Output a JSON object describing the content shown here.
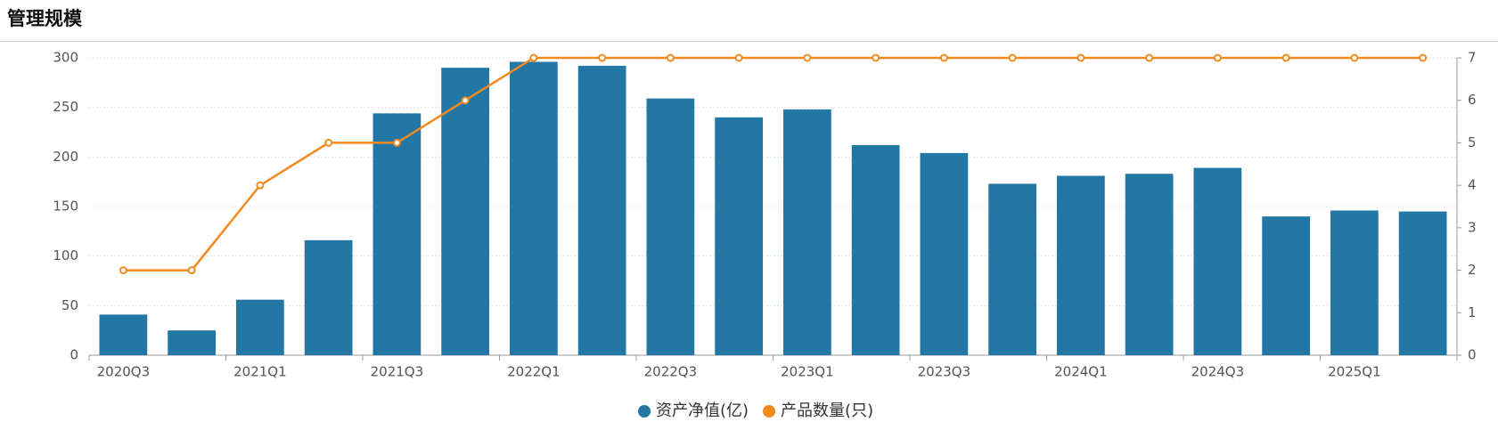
{
  "chart_data": {
    "type": "bar_line",
    "title": "管理规模",
    "categories": [
      "2020Q3",
      null,
      "2021Q1",
      null,
      "2021Q3",
      null,
      "2022Q1",
      null,
      "2022Q3",
      null,
      "2023Q1",
      null,
      "2023Q3",
      null,
      "2024Q1",
      null,
      "2024Q3",
      null,
      "2025Q1",
      null
    ],
    "series": [
      {
        "name": "资产净值(亿)",
        "color": "#2377a4",
        "type": "bar",
        "values": [
          41,
          25,
          56,
          116,
          244,
          290,
          296,
          292,
          259,
          240,
          248,
          212,
          204,
          173,
          181,
          183,
          189,
          140,
          146,
          145
        ]
      },
      {
        "name": "产品数量(只)",
        "color": "#f28a1f",
        "type": "line",
        "axis": "y2",
        "values": [
          2,
          2,
          4,
          5,
          5,
          6,
          7,
          7,
          7,
          7,
          7,
          7,
          7,
          7,
          7,
          7,
          7,
          7,
          7,
          7
        ]
      }
    ],
    "ylim": [
      0,
      300
    ],
    "yticks": [
      0,
      50,
      100,
      150,
      200,
      250,
      300
    ],
    "y2lim": [
      0,
      7
    ],
    "y2ticks": [
      0,
      1,
      2,
      3,
      4,
      5,
      6,
      7
    ],
    "grid": true,
    "legend": "bottom"
  }
}
